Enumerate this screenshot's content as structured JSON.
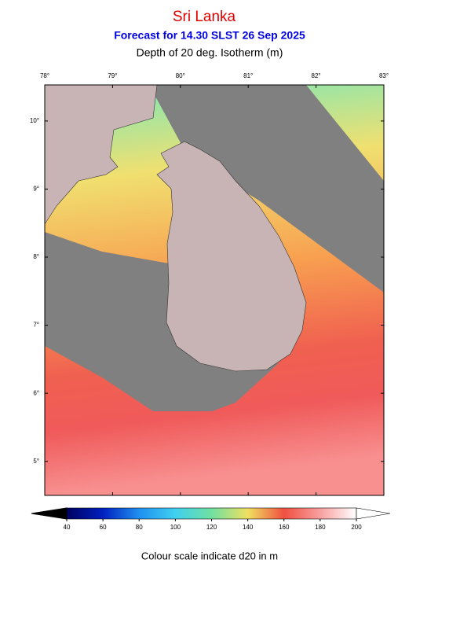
{
  "header": {
    "title": "Sri Lanka",
    "subtitle": "Forecast for  14.30 SLST 26 Sep 2025",
    "variable": "Depth of 20 deg. Isotherm (m)"
  },
  "map": {
    "lon_lim": [
      78,
      83
    ],
    "lat_lim": [
      4.5,
      10.53
    ],
    "lon_ticks": [
      {
        "value": 78,
        "label": "78°"
      },
      {
        "value": 79,
        "label": "79°"
      },
      {
        "value": 80,
        "label": "80°"
      },
      {
        "value": 81,
        "label": "81°"
      },
      {
        "value": 82,
        "label": "82°"
      },
      {
        "value": 83,
        "label": "83°"
      }
    ],
    "lat_ticks": [
      {
        "value": 10,
        "label": "10°"
      },
      {
        "value": 9,
        "label": "9°"
      },
      {
        "value": 8,
        "label": "8°"
      },
      {
        "value": 7,
        "label": "7°"
      },
      {
        "value": 6,
        "label": "6°"
      },
      {
        "value": 5,
        "label": "5°"
      }
    ]
  },
  "colorbar": {
    "lim": [
      40,
      200
    ],
    "ticks": [
      40,
      60,
      80,
      100,
      120,
      140,
      160,
      180,
      200
    ],
    "caption": "Colour scale indicate d20 in m"
  }
}
